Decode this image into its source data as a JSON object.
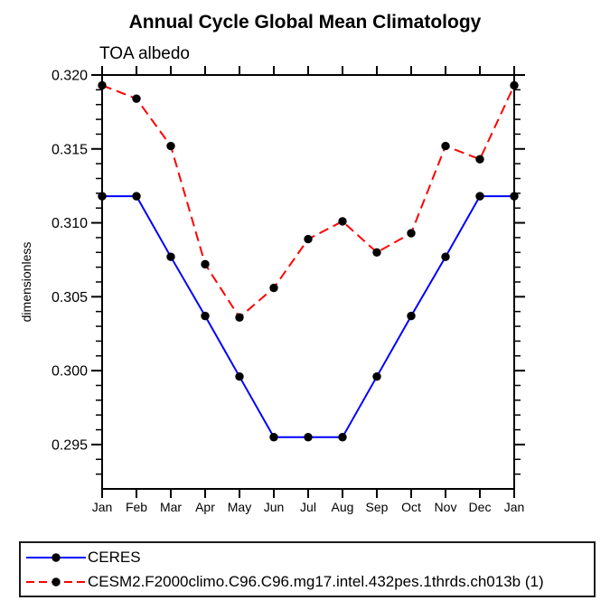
{
  "page": {
    "background": "#ffffff"
  },
  "colors": {
    "axis": "#000000",
    "marker": "#000000",
    "legend_border": "#1a1a1a"
  },
  "chart_data": {
    "type": "line",
    "title": "Annual Cycle Global Mean Climatology",
    "subtitle": "TOA albedo",
    "xlabel": "",
    "ylabel": "dimensionless",
    "categories": [
      "Jan",
      "Feb",
      "Mar",
      "Apr",
      "May",
      "Jun",
      "Jul",
      "Aug",
      "Sep",
      "Oct",
      "Nov",
      "Dec",
      "Jan"
    ],
    "series": [
      {
        "key": "ceres",
        "name": "CERES",
        "color": "#0000ff",
        "style": "solid",
        "marker": "circle",
        "values": [
          0.3118,
          0.3118,
          0.3077,
          0.3037,
          0.2996,
          0.2955,
          0.2955,
          0.2955,
          0.2996,
          0.3037,
          0.3077,
          0.3118,
          0.3118
        ]
      },
      {
        "key": "cesm2",
        "name": "CESM2.F2000climo.C96.C96.mg17.intel.432pes.1thrds.ch013b (1)",
        "color": "#ff0000",
        "style": "dashed",
        "marker": "circle",
        "values": [
          0.3193,
          0.3184,
          0.3152,
          0.3072,
          0.3036,
          0.3056,
          0.3089,
          0.3101,
          0.308,
          0.3093,
          0.3152,
          0.3143,
          0.3193
        ]
      }
    ],
    "ylim": [
      0.292,
      0.32
    ],
    "ytick_major_start": 0.295,
    "ytick_major_step": 0.005,
    "ytick_minor_step": 0.001,
    "ytick_labels": [
      "0.295",
      "0.300",
      "0.305",
      "0.310",
      "0.315",
      "0.320"
    ],
    "grid": false,
    "legend_position": "bottom-left-box"
  }
}
